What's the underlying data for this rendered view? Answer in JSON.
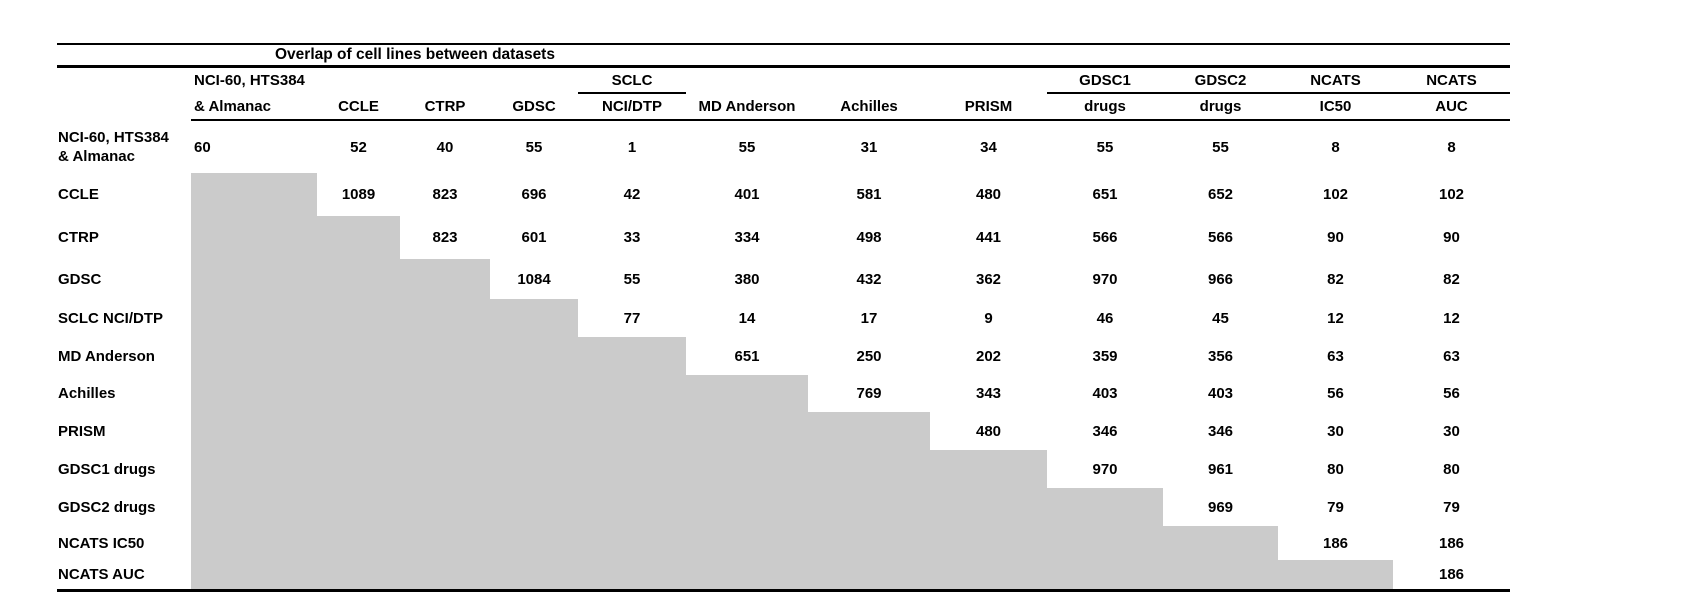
{
  "title": "Overlap of cell lines between datasets",
  "colors": {
    "background": "#ffffff",
    "text": "#000000",
    "rule": "#000000",
    "shaded_cell": "#cbcbcb"
  },
  "chart_data": {
    "type": "table",
    "title": "Overlap of cell lines between datasets",
    "description_visible": "Upper-triangular matrix of pairwise cell-line overlaps; lower triangle is shaded gray with no values.",
    "datasets": [
      "NCI-60, HTS384 & Almanac",
      "CCLE",
      "CTRP",
      "GDSC",
      "SCLC NCI/DTP",
      "MD Anderson",
      "Achilles",
      "PRISM",
      "GDSC1 drugs",
      "GDSC2 drugs",
      "NCATS IC50",
      "NCATS AUC"
    ],
    "column_headers": [
      {
        "top": "NCI-60, HTS384",
        "bottom": "& Almanac",
        "underline_top": false
      },
      {
        "top": "",
        "bottom": "CCLE",
        "underline_top": false
      },
      {
        "top": "",
        "bottom": "CTRP",
        "underline_top": false
      },
      {
        "top": "",
        "bottom": "GDSC",
        "underline_top": false
      },
      {
        "top": "SCLC",
        "bottom": "NCI/DTP",
        "underline_top": true
      },
      {
        "top": "",
        "bottom": "MD Anderson",
        "underline_top": false
      },
      {
        "top": "",
        "bottom": "Achilles",
        "underline_top": false
      },
      {
        "top": "",
        "bottom": "PRISM",
        "underline_top": false
      },
      {
        "top": "GDSC1",
        "bottom": "drugs",
        "underline_top": true
      },
      {
        "top": "GDSC2",
        "bottom": "drugs",
        "underline_top": true
      },
      {
        "top": "NCATS",
        "bottom": "IC50",
        "underline_top": true
      },
      {
        "top": "NCATS",
        "bottom": "AUC",
        "underline_top": true
      }
    ],
    "row_labels": [
      "NCI-60, HTS384\n& Almanac",
      "CCLE",
      "CTRP",
      "GDSC",
      "SCLC NCI/DTP",
      "MD Anderson",
      "Achilles",
      "PRISM",
      "GDSC1 drugs",
      "GDSC2 drugs",
      "NCATS IC50",
      "NCATS AUC"
    ],
    "matrix": [
      [
        60,
        52,
        40,
        55,
        1,
        55,
        31,
        34,
        55,
        55,
        8,
        8
      ],
      [
        null,
        1089,
        823,
        696,
        42,
        401,
        581,
        480,
        651,
        652,
        102,
        102
      ],
      [
        null,
        null,
        823,
        601,
        33,
        334,
        498,
        441,
        566,
        566,
        90,
        90
      ],
      [
        null,
        null,
        null,
        1084,
        55,
        380,
        432,
        362,
        970,
        966,
        82,
        82
      ],
      [
        null,
        null,
        null,
        null,
        77,
        14,
        17,
        9,
        46,
        45,
        12,
        12
      ],
      [
        null,
        null,
        null,
        null,
        null,
        651,
        250,
        202,
        359,
        356,
        63,
        63
      ],
      [
        null,
        null,
        null,
        null,
        null,
        null,
        769,
        343,
        403,
        403,
        56,
        56
      ],
      [
        null,
        null,
        null,
        null,
        null,
        null,
        null,
        480,
        346,
        346,
        30,
        30
      ],
      [
        null,
        null,
        null,
        null,
        null,
        null,
        null,
        null,
        970,
        961,
        80,
        80
      ],
      [
        null,
        null,
        null,
        null,
        null,
        null,
        null,
        null,
        null,
        969,
        79,
        79
      ],
      [
        null,
        null,
        null,
        null,
        null,
        null,
        null,
        null,
        null,
        null,
        186,
        186
      ],
      [
        null,
        null,
        null,
        null,
        null,
        null,
        null,
        null,
        null,
        null,
        null,
        186
      ]
    ],
    "shaded_lower_triangle": true,
    "legend_position": "none",
    "grid": false
  }
}
